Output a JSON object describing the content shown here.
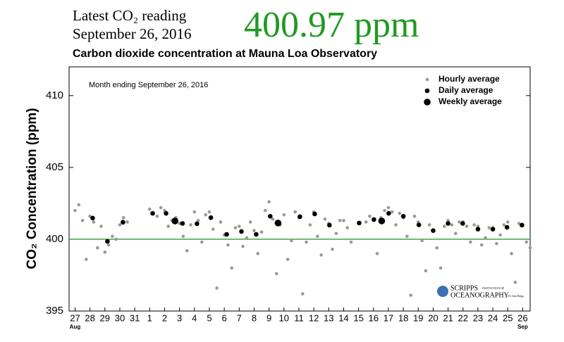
{
  "chart_data": {
    "type": "scatter",
    "header": [
      "Latest CO₂ reading",
      "September 26, 2016"
    ],
    "reading": "400.97 ppm",
    "title": "Carbon dioxide concentration at Mauna Loa Observatory",
    "annotation": "Month ending September 26, 2016",
    "ylabel": "CO₂ Concentration (ppm)",
    "logo_text": [
      "SCRIPPS",
      "INSTITUTION OF",
      "OCEANOGRAPHY",
      "UC San Diego"
    ],
    "ylim": [
      395,
      412
    ],
    "yticks": [
      395,
      400,
      405,
      410
    ],
    "xlim": [
      -0.4,
      30.5
    ],
    "xticks": [
      {
        "value": 0,
        "label": "27"
      },
      {
        "value": 1,
        "label": "28"
      },
      {
        "value": 2,
        "label": "29"
      },
      {
        "value": 3,
        "label": "30"
      },
      {
        "value": 4,
        "label": "31"
      },
      {
        "value": 5,
        "label": "1"
      },
      {
        "value": 6,
        "label": "2"
      },
      {
        "value": 7,
        "label": "3"
      },
      {
        "value": 8,
        "label": "4"
      },
      {
        "value": 9,
        "label": "5"
      },
      {
        "value": 10,
        "label": "6"
      },
      {
        "value": 11,
        "label": "7"
      },
      {
        "value": 12,
        "label": "8"
      },
      {
        "value": 13,
        "label": "9"
      },
      {
        "value": 14,
        "label": "10"
      },
      {
        "value": 15,
        "label": "11"
      },
      {
        "value": 16,
        "label": "12"
      },
      {
        "value": 17,
        "label": "13"
      },
      {
        "value": 18,
        "label": "14"
      },
      {
        "value": 19,
        "label": "15"
      },
      {
        "value": 20,
        "label": "16"
      },
      {
        "value": 21,
        "label": "17"
      },
      {
        "value": 22,
        "label": "18"
      },
      {
        "value": 23,
        "label": "19"
      },
      {
        "value": 24,
        "label": "20"
      },
      {
        "value": 25,
        "label": "21"
      },
      {
        "value": 26,
        "label": "22"
      },
      {
        "value": 27,
        "label": "23"
      },
      {
        "value": 28,
        "label": "24"
      },
      {
        "value": 29,
        "label": "25"
      },
      {
        "value": 30,
        "label": "26"
      }
    ],
    "month_labels": [
      {
        "value": 0,
        "label": "Aug"
      },
      {
        "value": 30,
        "label": "Sep"
      }
    ],
    "reference_line": {
      "value": 400,
      "color": "#2e9b3a"
    },
    "legend": "top-right",
    "series": [
      {
        "name": "Hourly average",
        "color": "#999999",
        "x": [
          0,
          0.25,
          0.5,
          0.75,
          1,
          1.25,
          1.5,
          1.75,
          2,
          2.25,
          2.5,
          2.75,
          3,
          3.25,
          3.5,
          5,
          5.25,
          5.5,
          5.75,
          6,
          6.25,
          6.5,
          6.75,
          7,
          7.25,
          7.5,
          7.75,
          8,
          8.25,
          8.5,
          8.75,
          9,
          9.25,
          9.5,
          9.75,
          10,
          10.25,
          10.5,
          10.75,
          11,
          11.25,
          11.5,
          11.75,
          12,
          12.25,
          12.5,
          12.75,
          13,
          13.25,
          13.5,
          13.75,
          14,
          14.25,
          14.5,
          14.75,
          15,
          15.25,
          15.5,
          15.75,
          16,
          16.25,
          16.5,
          16.75,
          17,
          17.25,
          17.5,
          17.75,
          18,
          18.25,
          18.5,
          19.5,
          19.75,
          20,
          20.25,
          20.5,
          20.75,
          21,
          21.25,
          21.5,
          21.75,
          22,
          22.25,
          22.5,
          22.75,
          23,
          23.25,
          23.5,
          23.75,
          24,
          24.25,
          24.5,
          24.75,
          25,
          25.25,
          25.5,
          25.75,
          26,
          26.25,
          26.5,
          26.75,
          27,
          27.25,
          27.5,
          27.75,
          28,
          28.25,
          28.5,
          28.75,
          29,
          29.25,
          29.5,
          29.75,
          30,
          30.25,
          30.5
        ],
        "values": [
          402.0,
          402.4,
          401.3,
          398.6,
          401.6,
          401.2,
          399.4,
          400.9,
          399.1,
          399.6,
          400.2,
          400.0,
          401.0,
          401.5,
          401.2,
          402.1,
          401.8,
          401.6,
          402.2,
          402.0,
          400.9,
          401.3,
          401.5,
          401.1,
          400.2,
          399.2,
          401.0,
          401.9,
          401.3,
          399.8,
          401.7,
          401.9,
          400.7,
          396.6,
          401.2,
          400.3,
          399.6,
          398.0,
          400.8,
          400.9,
          399.5,
          400.1,
          401.2,
          400.6,
          399.0,
          400.5,
          402.0,
          402.6,
          401.4,
          397.6,
          401.0,
          401.7,
          398.6,
          399.9,
          401.9,
          401.5,
          396.2,
          399.8,
          401.0,
          401.9,
          400.2,
          398.9,
          401.4,
          401.1,
          399.3,
          400.4,
          401.3,
          401.3,
          400.8,
          399.8,
          401.2,
          401.6,
          401.3,
          399.0,
          401.5,
          402.0,
          402.2,
          401.9,
          401.0,
          401.8,
          401.5,
          400.2,
          396.1,
          401.6,
          401.2,
          399.9,
          397.8,
          401.0,
          400.6,
          399.4,
          398.0,
          400.9,
          401.3,
          401.0,
          400.4,
          401.2,
          401.2,
          400.9,
          399.8,
          401.0,
          400.9,
          399.6,
          400.1,
          400.8,
          400.8,
          399.7,
          400.3,
          401.0,
          401.2,
          399.0,
          397.0,
          401.1,
          401.0,
          399.8,
          399.4
        ]
      },
      {
        "name": "Daily average",
        "color": "#000000",
        "x": [
          1.18,
          2.17,
          3.21,
          5.2,
          6.1,
          7.2,
          8.17,
          9.1,
          10.16,
          11.15,
          12.14,
          13.08,
          15.07,
          16.06,
          17.05,
          19.04,
          20.03,
          21.02,
          22.0,
          23.04,
          24.0,
          25.0,
          25.98,
          27.0,
          28.0,
          28.95,
          29.95
        ],
        "values": [
          401.47,
          399.85,
          401.18,
          401.8,
          401.8,
          401.1,
          401.08,
          401.5,
          400.34,
          400.54,
          400.34,
          401.6,
          401.57,
          401.76,
          400.98,
          401.13,
          401.37,
          401.8,
          401.6,
          401.0,
          400.6,
          401.1,
          401.1,
          400.7,
          400.7,
          400.83,
          400.98
        ]
      },
      {
        "name": "Weekly average",
        "color": "#000000",
        "x": [
          6.7,
          13.6,
          20.55
        ],
        "values": [
          401.27,
          401.13,
          401.27
        ]
      }
    ]
  }
}
